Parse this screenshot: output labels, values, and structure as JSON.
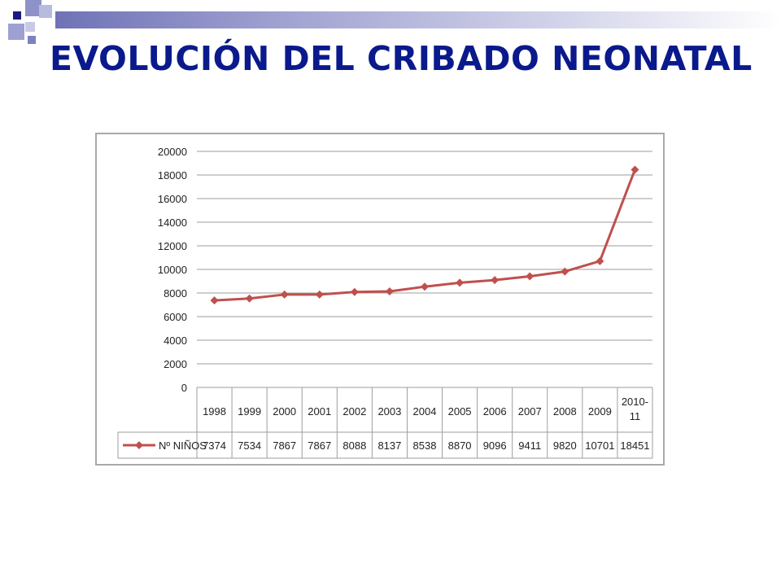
{
  "slide": {
    "title": "EVOLUCIÓN DEL CRIBADO NEONATAL"
  },
  "colors": {
    "title": "#0a1a8c",
    "series": "#c0504d",
    "decor_dark": "#1a1a80",
    "decor_light": "#8f92c8"
  },
  "chart_data": {
    "type": "line",
    "categories": [
      "1998",
      "1999",
      "2000",
      "2001",
      "2002",
      "2003",
      "2004",
      "2005",
      "2006",
      "2007",
      "2008",
      "2009",
      "2010-11"
    ],
    "series": [
      {
        "name": "Nº NIÑOS",
        "color": "#c0504d",
        "marker": "diamond",
        "values": [
          7374,
          7534,
          7867,
          7867,
          8088,
          8137,
          8538,
          8870,
          9096,
          9411,
          9820,
          10701,
          18451
        ]
      }
    ],
    "ylim": [
      0,
      20000
    ],
    "yticks": [
      0,
      2000,
      4000,
      6000,
      8000,
      10000,
      12000,
      14000,
      16000,
      18000,
      20000
    ],
    "grid": true,
    "legend": "data-table-left",
    "data_table": true,
    "title": "",
    "xlabel": "",
    "ylabel": ""
  }
}
